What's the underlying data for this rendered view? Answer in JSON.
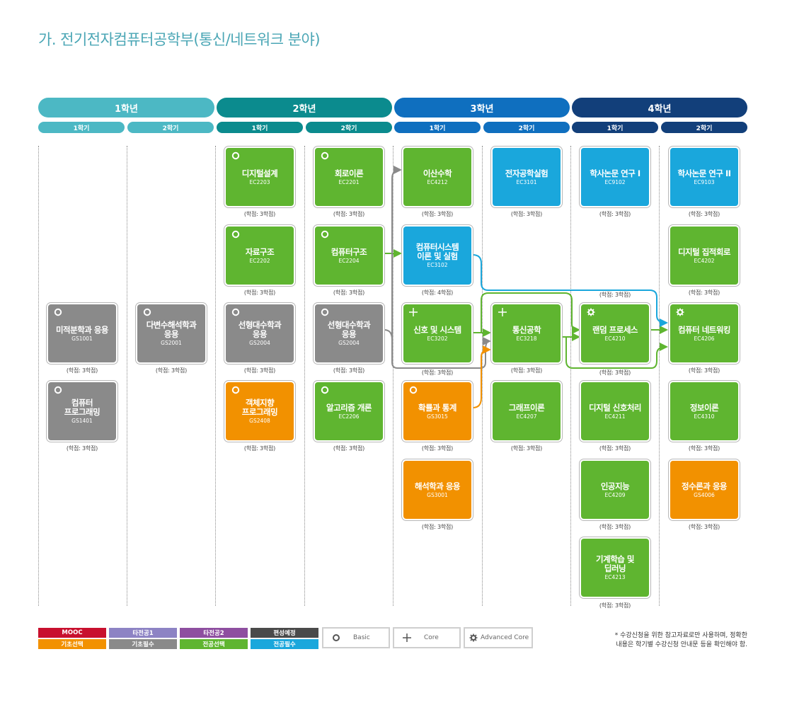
{
  "title": "가. 전기전자컴퓨터공학부(통신/네트워크 분야)",
  "years": [
    {
      "label": "1학년",
      "color": "#4cb8c4",
      "sem": [
        "1학기",
        "2학기"
      ]
    },
    {
      "label": "2학년",
      "color": "#0b8b8e",
      "sem": [
        "1학기",
        "2학기"
      ]
    },
    {
      "label": "3학년",
      "color": "#0f6fbf",
      "sem": [
        "1학기",
        "2학기"
      ]
    },
    {
      "label": "4학년",
      "color": "#123f7a",
      "sem": [
        "1학기",
        "2학기"
      ]
    }
  ],
  "courses": {
    "y1s1_1": {
      "name": "미적분학과 응용",
      "code": "GS1001",
      "credit": "(학점: 3학점)",
      "color": "gray",
      "marker": "basic"
    },
    "y1s1_2": {
      "name": "컴퓨터\n프로그래밍",
      "code": "GS1401",
      "credit": "(학점: 3학점)",
      "color": "gray",
      "marker": "basic"
    },
    "y1s2_1": {
      "name": "다변수해석학과\n응용",
      "code": "GS2001",
      "credit": "(학점: 3학점)",
      "color": "gray",
      "marker": "basic"
    },
    "y2s1_1": {
      "name": "디지털설계",
      "code": "EC2203",
      "credit": "(학점: 3학점)",
      "color": "green",
      "marker": "basic"
    },
    "y2s1_2": {
      "name": "자료구조",
      "code": "EC2202",
      "credit": "(학점: 3학점)",
      "color": "green",
      "marker": "basic"
    },
    "y2s1_3": {
      "name": "선형대수학과\n응용",
      "code": "GS2004",
      "credit": "(학점: 3학점)",
      "color": "gray",
      "marker": "basic"
    },
    "y2s1_4": {
      "name": "객체지향\n프로그래밍",
      "code": "GS2408",
      "credit": "(학점: 3학점)",
      "color": "orange",
      "marker": "basic"
    },
    "y2s2_1": {
      "name": "회로이론",
      "code": "EC2201",
      "credit": "(학점: 3학점)",
      "color": "green",
      "marker": "basic"
    },
    "y2s2_2": {
      "name": "컴퓨터구조",
      "code": "EC2204",
      "credit": "(학점: 3학점)",
      "color": "green",
      "marker": "basic"
    },
    "y2s2_3": {
      "name": "선형대수학과\n응용",
      "code": "GS2004",
      "credit": "(학점: 3학점)",
      "color": "gray",
      "marker": "basic"
    },
    "y2s2_4": {
      "name": "알고리즘 개론",
      "code": "EC2206",
      "credit": "(학점: 3학점)",
      "color": "green",
      "marker": "basic"
    },
    "y3s1_1": {
      "name": "이산수학",
      "code": "EC4212",
      "credit": "(학점: 3학점)",
      "color": "green",
      "marker": "none"
    },
    "y3s1_2": {
      "name": "컴퓨터시스템\n이론 및 실험",
      "code": "EC3102",
      "credit": "(학점: 4학점)",
      "color": "blue",
      "marker": "none"
    },
    "y3s1_3": {
      "name": "신호 및 시스템",
      "code": "EC3202",
      "credit": "(학점: 3학점)",
      "color": "green",
      "marker": "core"
    },
    "y3s1_4": {
      "name": "확률과 통계",
      "code": "GS3015",
      "credit": "(학점: 3학점)",
      "color": "orange",
      "marker": "basic"
    },
    "y3s1_5": {
      "name": "해석학과 응용",
      "code": "GS3001",
      "credit": "(학점: 3학점)",
      "color": "orange",
      "marker": "none"
    },
    "y3s2_1": {
      "name": "전자공학실험",
      "code": "EC3101",
      "credit": "(학점: 3학점)",
      "color": "blue",
      "marker": "none"
    },
    "y3s2_2": {
      "name": "통신공학",
      "code": "EC3218",
      "credit": "(학점: 3학점)",
      "color": "green",
      "marker": "core"
    },
    "y3s2_3": {
      "name": "그래프이론",
      "code": "EC4207",
      "credit": "(학점: 3학점)",
      "color": "green",
      "marker": "none"
    },
    "y4s1_1": {
      "name": "학사논문 연구 I",
      "code": "EC9102",
      "credit": "(학점: 3학점)",
      "color": "blue",
      "marker": "none"
    },
    "y4s1_2": {
      "name": "랜덤 프로세스",
      "code": "EC4210",
      "credit": "(학점: 3학점)",
      "color": "green",
      "marker": "advanced"
    },
    "y4s1_3": {
      "name": "디지털 신호처리",
      "code": "EC4211",
      "credit": "(학점: 3학점)",
      "color": "green",
      "marker": "none"
    },
    "y4s1_4": {
      "name": "인공지능",
      "code": "EC4209",
      "credit": "(학점: 3학점)",
      "color": "green",
      "marker": "none"
    },
    "y4s1_5": {
      "name": "기계학습 및\n딥러닝",
      "code": "EC4213",
      "credit": "(학점: 3학점)",
      "color": "green",
      "marker": "none"
    },
    "y4s1_mid": {
      "credit": "(학점: 3학점)"
    },
    "y4s2_1": {
      "name": "학사논문 연구 II",
      "code": "EC9103",
      "credit": "(학점: 3학점)",
      "color": "blue",
      "marker": "none"
    },
    "y4s2_2": {
      "name": "디지털 집적회로",
      "code": "EC4202",
      "credit": "(학점: 3학점)",
      "color": "green",
      "marker": "none"
    },
    "y4s2_3": {
      "name": "컴퓨터 네트워킹",
      "code": "EC4206",
      "credit": "(학점: 3학점)",
      "color": "green",
      "marker": "advanced"
    },
    "y4s2_4": {
      "name": "정보이론",
      "code": "EC4310",
      "credit": "(학점: 3학점)",
      "color": "green",
      "marker": "none"
    },
    "y4s2_5": {
      "name": "정수론과 응용",
      "code": "GS4006",
      "credit": "(학점: 3학점)",
      "color": "orange",
      "marker": "none"
    }
  },
  "legend": {
    "row1": [
      {
        "label": "MOOC",
        "color": "#c8102e"
      },
      {
        "label": "타전공1",
        "color": "#8d83c4"
      },
      {
        "label": "타전공2",
        "color": "#8e4fa0"
      },
      {
        "label": "편성예정",
        "color": "#4a4a4a"
      }
    ],
    "row2": [
      {
        "label": "기초선택",
        "color": "#f29100"
      },
      {
        "label": "기초필수",
        "color": "#8a8a8a"
      },
      {
        "label": "전공선택",
        "color": "#5fb530"
      },
      {
        "label": "전공필수",
        "color": "#1aa7dc"
      }
    ],
    "markers": {
      "basic": "Basic",
      "core": "Core",
      "advanced": "Advanced Core"
    }
  },
  "note": {
    "line1": "* 수강신청을 위한 참고자료로만 사용하며, 정확한",
    "line2": "내용은 학기별 수강신청 안내문 등을 확인해야 함."
  }
}
